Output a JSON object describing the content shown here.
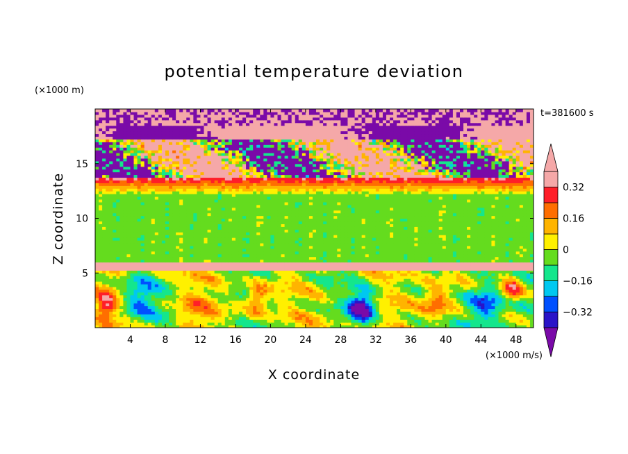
{
  "chart_data": {
    "type": "heatmap",
    "title": "potential temperature deviation",
    "xlabel": "X coordinate",
    "ylabel": "Z coordinate",
    "x_unit": "(×1000 m/s)",
    "y_unit": "(×1000 m)",
    "time_label": "t=381600 s",
    "xlim": [
      0,
      50
    ],
    "ylim": [
      0,
      20
    ],
    "x_ticks": [
      "4",
      "8",
      "12",
      "16",
      "20",
      "24",
      "28",
      "32",
      "36",
      "40",
      "44",
      "48"
    ],
    "y_ticks": [
      "5",
      "10",
      "15"
    ],
    "colorbar": {
      "levels": [
        -0.4,
        -0.32,
        -0.24,
        -0.16,
        -0.08,
        0,
        0.08,
        0.16,
        0.24,
        0.32,
        0.4
      ],
      "labels": [
        "0.32",
        "0.16",
        "0",
        "−0.16",
        "−0.32"
      ],
      "colors": [
        "#7a0aa8",
        "#2a14c8",
        "#0050ff",
        "#00c8f0",
        "#14e68c",
        "#64dc1e",
        "#fff000",
        "#ffb400",
        "#ff6e00",
        "#ff1e28",
        "#f5a8a8"
      ]
    }
  }
}
